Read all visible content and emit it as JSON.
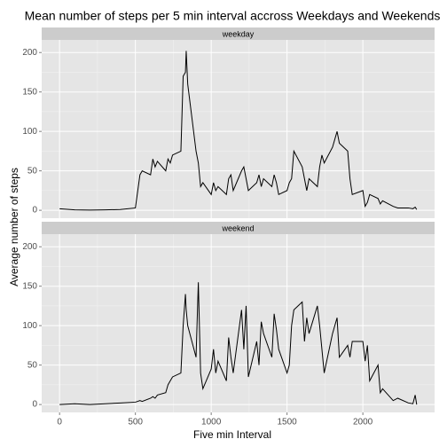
{
  "chart_data": {
    "type": "line",
    "title": "Mean number of steps per 5 min interval accross Weekdays and Weekends",
    "x_label": "Five min Interval",
    "y_label": "Average number of steps",
    "x": [
      0,
      100,
      200,
      300,
      400,
      500,
      530,
      545,
      600,
      615,
      630,
      645,
      700,
      715,
      730,
      745,
      800,
      815,
      830,
      835,
      845,
      900,
      915,
      930,
      945,
      1000,
      1015,
      1030,
      1045,
      1100,
      1115,
      1130,
      1145,
      1200,
      1215,
      1230,
      1245,
      1300,
      1315,
      1330,
      1345,
      1400,
      1415,
      1430,
      1445,
      1500,
      1515,
      1530,
      1545,
      1600,
      1615,
      1630,
      1645,
      1700,
      1715,
      1730,
      1745,
      1800,
      1815,
      1830,
      1845,
      1900,
      1915,
      1930,
      2000,
      2015,
      2030,
      2045,
      2100,
      2115,
      2130,
      2200,
      2230,
      2300,
      2330,
      2345,
      2355
    ],
    "series": [
      {
        "name": "weekday",
        "color": "#000000",
        "values": [
          2,
          0.5,
          0.3,
          0.5,
          1,
          3,
          45,
          50,
          45,
          65,
          55,
          62,
          50,
          65,
          60,
          70,
          75,
          170,
          175,
          202,
          160,
          75,
          60,
          30,
          35,
          20,
          35,
          25,
          30,
          20,
          40,
          45,
          25,
          50,
          55,
          40,
          25,
          35,
          45,
          30,
          40,
          30,
          45,
          35,
          20,
          25,
          35,
          40,
          75,
          55,
          40,
          25,
          40,
          30,
          55,
          70,
          60,
          80,
          90,
          100,
          85,
          75,
          40,
          20,
          25,
          5,
          10,
          20,
          15,
          8,
          12,
          5,
          3,
          3,
          2,
          4,
          1
        ]
      },
      {
        "name": "weekend",
        "color": "#000000",
        "values": [
          0,
          1,
          0,
          1,
          2,
          3,
          5,
          4,
          8,
          10,
          8,
          12,
          15,
          25,
          30,
          35,
          40,
          100,
          140,
          120,
          100,
          60,
          155,
          40,
          20,
          45,
          70,
          40,
          55,
          30,
          85,
          60,
          40,
          120,
          70,
          125,
          35,
          80,
          50,
          105,
          90,
          60,
          115,
          95,
          70,
          40,
          50,
          100,
          120,
          130,
          80,
          110,
          90,
          125,
          100,
          70,
          40,
          90,
          100,
          110,
          60,
          75,
          60,
          80,
          80,
          55,
          75,
          30,
          50,
          15,
          20,
          5,
          8,
          2,
          1,
          12,
          0
        ]
      }
    ],
    "xlim": [
      -118,
      2473
    ],
    "xticks": [
      0,
      500,
      1000,
      1500,
      2000
    ],
    "ylim": [
      -10,
      216
    ],
    "yticks": [
      0,
      50,
      100,
      150,
      200
    ],
    "grid": true
  }
}
